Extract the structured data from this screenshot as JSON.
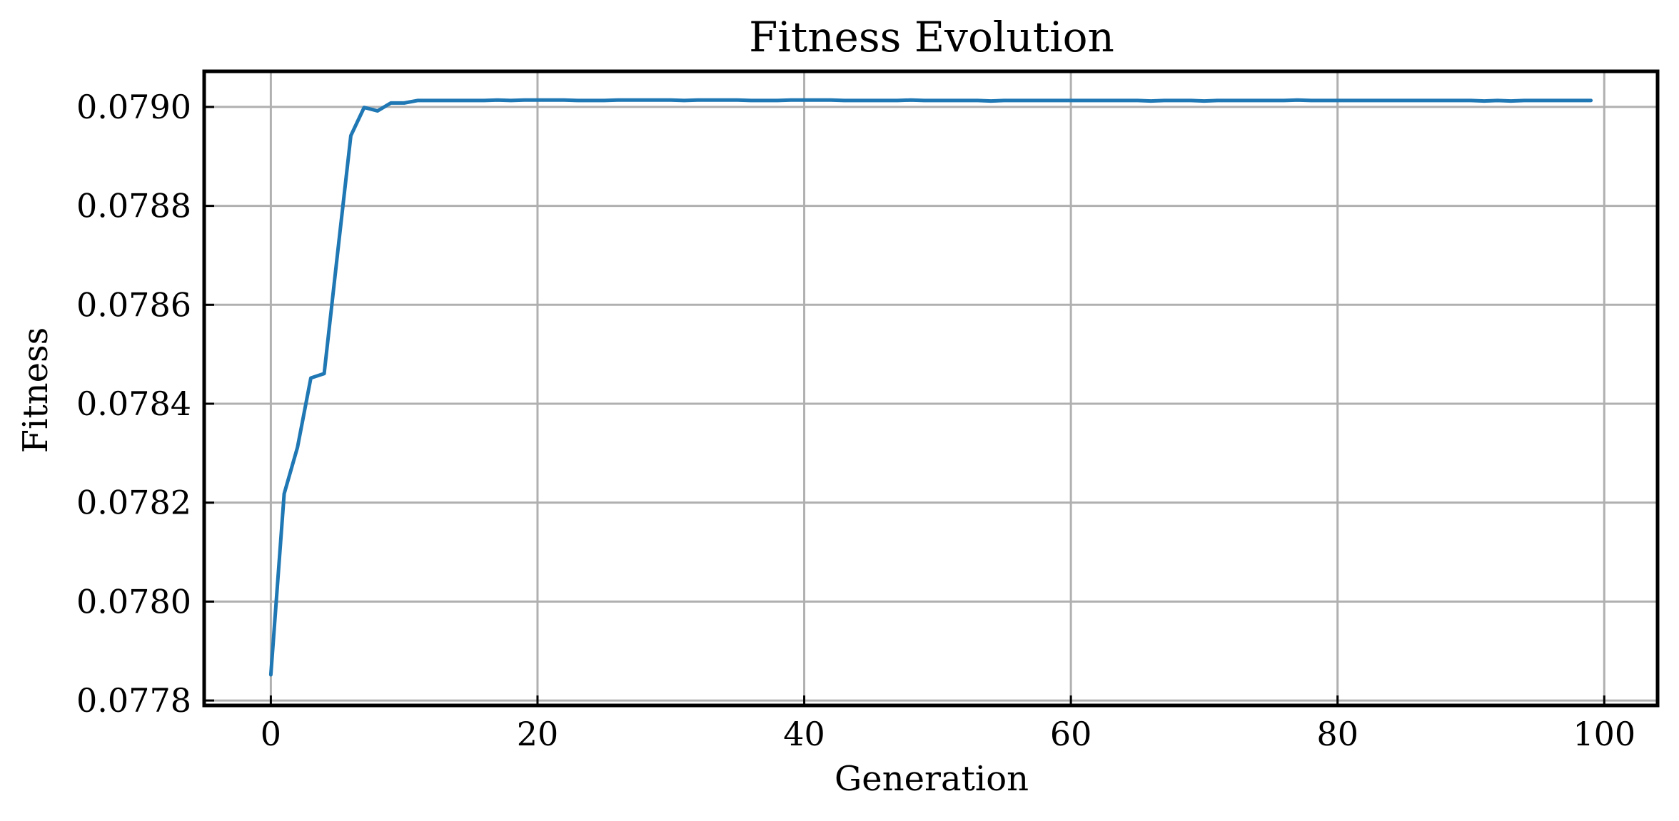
{
  "chart_data": {
    "type": "line",
    "title": "Fitness Evolution",
    "xlabel": "Generation",
    "ylabel": "Fitness",
    "xlim": [
      -5,
      104
    ],
    "ylim": [
      0.07779,
      0.079072
    ],
    "x_ticks": [
      0,
      20,
      40,
      60,
      80,
      100
    ],
    "x_tick_labels": [
      "0",
      "20",
      "40",
      "60",
      "80",
      "100"
    ],
    "y_ticks": [
      0.0778,
      0.078,
      0.0782,
      0.0784,
      0.0786,
      0.0788,
      0.079
    ],
    "y_tick_labels": [
      "0.0778",
      "0.0780",
      "0.0782",
      "0.0784",
      "0.0786",
      "0.0788",
      "0.0790"
    ],
    "grid": true,
    "legend": "none",
    "colors": {
      "series": "#1f77b4",
      "grid": "#b0b0b0",
      "frame": "#000000"
    },
    "series": [
      {
        "x": [
          0,
          1,
          2,
          3,
          4,
          5,
          6,
          7,
          8,
          9,
          10,
          11,
          12,
          13,
          14,
          15,
          16,
          17,
          18,
          19,
          20,
          21,
          22,
          23,
          24,
          25,
          26,
          27,
          28,
          29,
          30,
          31,
          32,
          33,
          34,
          35,
          36,
          37,
          38,
          39,
          40,
          41,
          42,
          43,
          44,
          45,
          46,
          47,
          48,
          49,
          50,
          51,
          52,
          53,
          54,
          55,
          56,
          57,
          58,
          59,
          60,
          61,
          62,
          63,
          64,
          65,
          66,
          67,
          68,
          69,
          70,
          71,
          72,
          73,
          74,
          75,
          76,
          77,
          78,
          79,
          80,
          81,
          82,
          83,
          84,
          85,
          86,
          87,
          88,
          89,
          90,
          91,
          92,
          93,
          94,
          95,
          96,
          97,
          98,
          99
        ],
        "y": [
          0.077852,
          0.078218,
          0.078312,
          0.078452,
          0.078461,
          0.078703,
          0.078942,
          0.078999,
          0.078992,
          0.079008,
          0.079008,
          0.079013,
          0.079013,
          0.079013,
          0.079013,
          0.079013,
          0.079013,
          0.079014,
          0.079013,
          0.079014,
          0.079014,
          0.079014,
          0.079014,
          0.079013,
          0.079013,
          0.079013,
          0.079014,
          0.079014,
          0.079014,
          0.079014,
          0.079014,
          0.079013,
          0.079014,
          0.079014,
          0.079014,
          0.079014,
          0.079013,
          0.079013,
          0.079013,
          0.079014,
          0.079014,
          0.079014,
          0.079014,
          0.079013,
          0.079013,
          0.079013,
          0.079013,
          0.079013,
          0.079014,
          0.079013,
          0.079013,
          0.079013,
          0.079013,
          0.079013,
          0.079012,
          0.079013,
          0.079013,
          0.079013,
          0.079013,
          0.079013,
          0.079013,
          0.079013,
          0.079013,
          0.079013,
          0.079013,
          0.079013,
          0.079012,
          0.079013,
          0.079013,
          0.079013,
          0.079012,
          0.079013,
          0.079013,
          0.079013,
          0.079013,
          0.079013,
          0.079013,
          0.079014,
          0.079013,
          0.079013,
          0.079013,
          0.079013,
          0.079013,
          0.079013,
          0.079013,
          0.079013,
          0.079013,
          0.079013,
          0.079013,
          0.079013,
          0.079013,
          0.079012,
          0.079013,
          0.079012,
          0.079013,
          0.079013,
          0.079013,
          0.079013,
          0.079013,
          0.079013
        ]
      }
    ]
  }
}
